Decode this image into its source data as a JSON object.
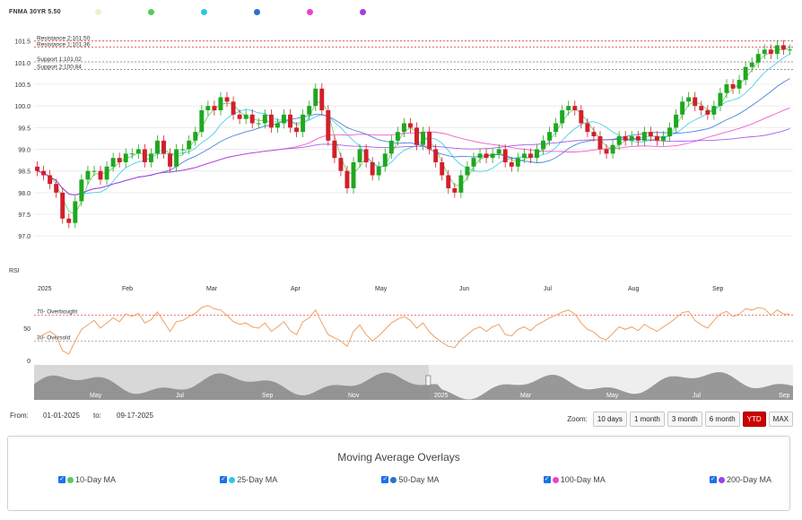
{
  "legend": {
    "symbol": "FNMA 30YR 5.50",
    "dot_colors": [
      "#f2f0c8",
      "#5ac85a",
      "#2dc6e8",
      "#2a6fd0",
      "#f040c8",
      "#9b40e8"
    ]
  },
  "chart_data": [
    {
      "type": "candlestick",
      "title": "",
      "ylim": [
        96.9,
        101.7
      ],
      "y_ticks": [
        "97.0",
        "97.5",
        "98.0",
        "98.5",
        "99.0",
        "99.5",
        "100.0",
        "100.5",
        "101.0",
        "101.5"
      ],
      "y_tick_values": [
        97.0,
        97.5,
        98.0,
        98.5,
        99.0,
        99.5,
        100.0,
        100.5,
        101.0,
        101.5
      ],
      "x_month_labels": [
        "2025",
        "Feb",
        "Mar",
        "Apr",
        "May",
        "Jun",
        "Jul",
        "Aug",
        "Sep"
      ],
      "levels": [
        {
          "label": "Resistance 2:101.50",
          "value": 101.5,
          "color": "#e05050"
        },
        {
          "label": "Resistance 1:101.36",
          "value": 101.36,
          "color": "#e05050"
        },
        {
          "label": "Support 1:101.02",
          "value": 101.02,
          "color": "#888888"
        },
        {
          "label": "Support 2:100.84",
          "value": 100.84,
          "color": "#888888"
        }
      ],
      "close_series": [
        98.5,
        98.4,
        98.2,
        98.0,
        97.4,
        97.3,
        97.8,
        98.3,
        98.5,
        98.5,
        98.3,
        98.6,
        98.8,
        98.7,
        98.9,
        98.9,
        99.0,
        98.7,
        98.9,
        99.2,
        98.9,
        98.6,
        99.0,
        99.0,
        99.2,
        99.4,
        99.9,
        100.0,
        99.9,
        100.2,
        100.1,
        99.8,
        99.7,
        99.8,
        99.6,
        99.6,
        99.8,
        99.5,
        99.6,
        99.8,
        99.5,
        99.4,
        99.8,
        100.0,
        100.4,
        99.9,
        99.2,
        98.8,
        98.5,
        98.1,
        98.7,
        99.0,
        98.7,
        98.4,
        98.6,
        98.9,
        99.2,
        99.4,
        99.6,
        99.5,
        99.1,
        99.4,
        99.0,
        98.7,
        98.4,
        98.1,
        98.0,
        98.4,
        98.6,
        98.8,
        98.9,
        98.8,
        98.9,
        99.0,
        98.7,
        98.6,
        98.8,
        98.9,
        98.8,
        99.0,
        99.2,
        99.4,
        99.6,
        99.9,
        100.0,
        99.9,
        99.6,
        99.4,
        99.3,
        99.0,
        98.9,
        99.1,
        99.3,
        99.2,
        99.3,
        99.2,
        99.4,
        99.3,
        99.2,
        99.3,
        99.5,
        99.8,
        100.1,
        100.2,
        100.0,
        99.9,
        99.8,
        100.0,
        100.3,
        100.5,
        100.4,
        100.6,
        100.9,
        101.0,
        101.2,
        101.3,
        101.2,
        101.4,
        101.3,
        101.3
      ],
      "rsi": {
        "label": "RSI",
        "ylim": [
          0,
          100
        ],
        "y_ticks": [
          "0",
          "50"
        ],
        "y_tick_values": [
          0,
          50
        ],
        "overbought_label": "70- Overbought",
        "overbought": 70,
        "oversold_label": "30- Oversold",
        "oversold": 30,
        "values": [
          35,
          40,
          45,
          38,
          15,
          10,
          30,
          48,
          55,
          62,
          50,
          58,
          66,
          60,
          72,
          68,
          73,
          58,
          63,
          75,
          60,
          45,
          60,
          62,
          68,
          73,
          82,
          85,
          80,
          78,
          70,
          60,
          56,
          58,
          52,
          50,
          58,
          45,
          52,
          60,
          46,
          40,
          60,
          66,
          78,
          58,
          40,
          35,
          30,
          22,
          45,
          55,
          40,
          30,
          38,
          48,
          58,
          64,
          68,
          62,
          50,
          58,
          44,
          35,
          28,
          22,
          20,
          32,
          40,
          48,
          52,
          45,
          52,
          56,
          40,
          38,
          48,
          52,
          46,
          55,
          60,
          66,
          70,
          75,
          78,
          72,
          58,
          48,
          44,
          35,
          32,
          42,
          52,
          48,
          52,
          46,
          56,
          50,
          45,
          52,
          58,
          66,
          74,
          76,
          62,
          55,
          50,
          62,
          72,
          76,
          68,
          72,
          80,
          78,
          82,
          80,
          70,
          78,
          72,
          72
        ]
      },
      "navigator": {
        "labels_top": [
          "May",
          "Jul",
          "Sep",
          "Nov",
          "2025",
          "Mar",
          "May",
          "Jul",
          "Sep"
        ]
      }
    }
  ],
  "range": {
    "from_label": "From:",
    "from_value": "01-01-2025",
    "to_label": "to:",
    "to_value": "09-17-2025"
  },
  "zoom": {
    "label": "Zoom:",
    "buttons": [
      "10 days",
      "1 month",
      "3 month",
      "6 month",
      "YTD",
      "MAX"
    ],
    "active": "YTD"
  },
  "ma_panel": {
    "title": "Moving Average Overlays",
    "options": [
      {
        "label": "10-Day MA",
        "color": "#5ac85a"
      },
      {
        "label": "25-Day MA",
        "color": "#2dc6e8"
      },
      {
        "label": "50-Day MA",
        "color": "#2a6fd0"
      },
      {
        "label": "100-Day MA",
        "color": "#f040c8"
      },
      {
        "label": "200-Day MA",
        "color": "#9b40e8"
      }
    ]
  }
}
